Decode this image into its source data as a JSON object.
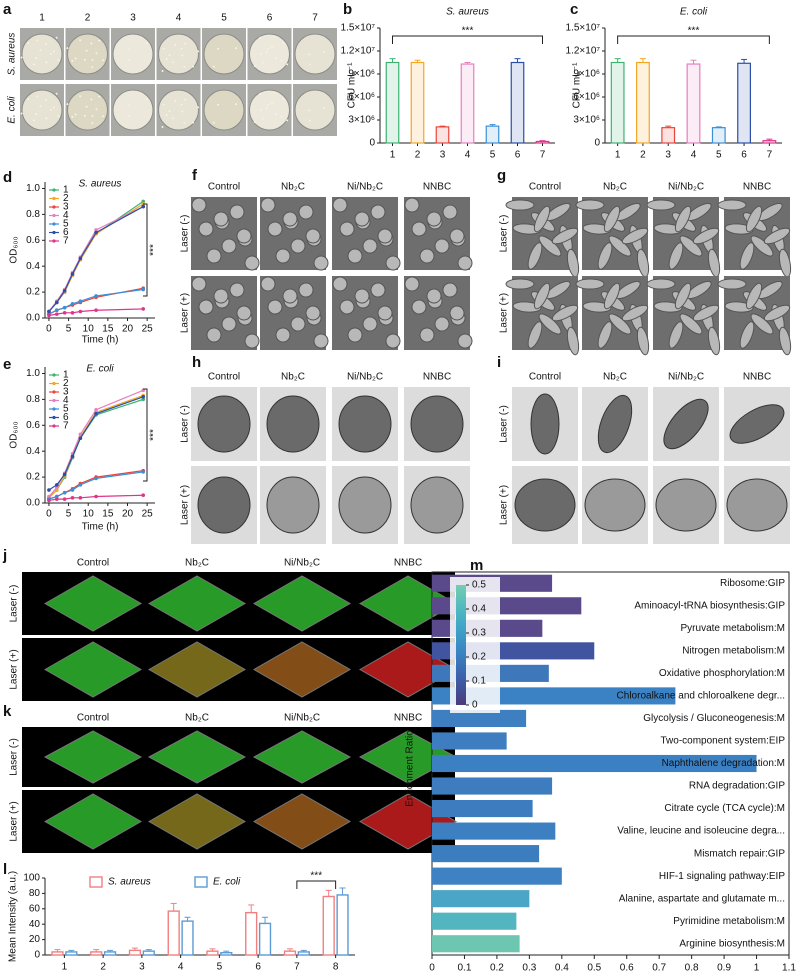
{
  "panels": {
    "a": {
      "letter": "a",
      "columns": [
        "1",
        "2",
        "3",
        "4",
        "5",
        "6",
        "7"
      ],
      "rows": [
        "S. aureus",
        "E. coli"
      ]
    },
    "f": {
      "letter": "f",
      "columns": [
        "Control",
        "Nb₂C",
        "Ni/Nb₂C",
        "NNBC"
      ],
      "rows": [
        "Laser (-)",
        "Laser (+)"
      ]
    },
    "g": {
      "letter": "g",
      "columns": [
        "Control",
        "Nb₂C",
        "Ni/Nb₂C",
        "NNBC"
      ],
      "rows": [
        "Laser (-)",
        "Laser (+)"
      ]
    },
    "h": {
      "letter": "h",
      "columns": [
        "Control",
        "Nb₂C",
        "Ni/Nb₂C",
        "NNBC"
      ],
      "rows": [
        "Laser (-)",
        "Laser (+)"
      ]
    },
    "i": {
      "letter": "i",
      "columns": [
        "Control",
        "Nb₂C",
        "Ni/Nb₂C",
        "NNBC"
      ],
      "rows": [
        "Laser (-)",
        "Laser (+)"
      ]
    },
    "j": {
      "letter": "j",
      "columns": [
        "Control",
        "Nb₂C",
        "Ni/Nb₂C",
        "NNBC"
      ],
      "rows": [
        "Laser (-)",
        "Laser (+)"
      ]
    },
    "k": {
      "letter": "k",
      "columns": [
        "Control",
        "Nb₂C",
        "Ni/Nb₂C",
        "NNBC"
      ],
      "rows": [
        "Laser (-)",
        "Laser (+)"
      ]
    }
  },
  "chart_data": [
    {
      "type": "bar",
      "letter": "b",
      "title": "S. aureus",
      "y_label": "CFU mL⁻¹",
      "categories": [
        "1",
        "2",
        "3",
        "4",
        "5",
        "6",
        "7"
      ],
      "values": [
        10500000,
        10500000,
        2100000,
        10300000,
        2200000,
        10500000,
        200000
      ],
      "errors": [
        500000,
        300000,
        100000,
        200000,
        200000,
        500000,
        100000
      ],
      "colors": [
        "#3cb371",
        "#f5a623",
        "#e8453c",
        "#e77fc0",
        "#3a8fd9",
        "#2b4fa8",
        "#e0338a"
      ],
      "ylim": [
        0,
        15000000
      ],
      "yticks": [
        0,
        {
          "value": 3000000,
          "label": "3×10⁶"
        },
        {
          "value": 6000000,
          "label": "6×10⁶"
        },
        {
          "value": 9000000,
          "label": "9×10⁶"
        },
        {
          "value": 12000000,
          "label": "1.2×10⁷"
        },
        {
          "value": 15000000,
          "label": "1.5×10⁷"
        }
      ],
      "annotation": "***"
    },
    {
      "type": "bar",
      "letter": "c",
      "title": "E. coli",
      "y_label": "CFU mL⁻¹",
      "categories": [
        "1",
        "2",
        "3",
        "4",
        "5",
        "6",
        "7"
      ],
      "values": [
        10500000,
        10500000,
        2000000,
        10300000,
        2000000,
        10400000,
        300000
      ],
      "errors": [
        500000,
        500000,
        200000,
        500000,
        100000,
        500000,
        200000
      ],
      "colors": [
        "#3cb371",
        "#f5a623",
        "#e8453c",
        "#e77fc0",
        "#3a8fd9",
        "#2b4fa8",
        "#e0338a"
      ],
      "ylim": [
        0,
        15000000
      ],
      "yticks": [
        0,
        {
          "value": 3000000,
          "label": "3×10⁶"
        },
        {
          "value": 6000000,
          "label": "6×10⁶"
        },
        {
          "value": 9000000,
          "label": "9×10⁶"
        },
        {
          "value": 12000000,
          "label": "1.2×10⁷"
        },
        {
          "value": 15000000,
          "label": "1.5×10⁷"
        }
      ],
      "annotation": "***"
    },
    {
      "type": "line",
      "letter": "d",
      "title": "S. aureus",
      "x_label": "Time (h)",
      "y_label": "OD₆₀₀",
      "x": [
        0,
        2,
        4,
        6,
        8,
        12,
        24
      ],
      "series": [
        {
          "name": "1",
          "color": "#3cb371",
          "values": [
            0.05,
            0.12,
            0.2,
            0.33,
            0.45,
            0.65,
            0.9
          ]
        },
        {
          "name": "2",
          "color": "#f5a623",
          "values": [
            0.05,
            0.12,
            0.2,
            0.33,
            0.45,
            0.65,
            0.88
          ]
        },
        {
          "name": "3",
          "color": "#e8453c",
          "values": [
            0.03,
            0.06,
            0.08,
            0.1,
            0.12,
            0.16,
            0.23
          ]
        },
        {
          "name": "4",
          "color": "#e77fc0",
          "values": [
            0.05,
            0.13,
            0.22,
            0.35,
            0.47,
            0.68,
            0.86
          ]
        },
        {
          "name": "5",
          "color": "#3a8fd9",
          "values": [
            0.03,
            0.06,
            0.08,
            0.11,
            0.13,
            0.17,
            0.22
          ]
        },
        {
          "name": "6",
          "color": "#2b4fa8",
          "values": [
            0.05,
            0.12,
            0.21,
            0.34,
            0.46,
            0.66,
            0.86
          ]
        },
        {
          "name": "7",
          "color": "#e0338a",
          "values": [
            0.02,
            0.03,
            0.04,
            0.04,
            0.05,
            0.06,
            0.07
          ]
        }
      ],
      "xlim": [
        -1,
        27
      ],
      "xticks": [
        0,
        5,
        10,
        15,
        20,
        25
      ],
      "ylim": [
        0,
        1.05
      ],
      "yticks": [
        {
          "value": 0,
          "label": "0.0"
        },
        {
          "value": 0.2,
          "label": "0.2"
        },
        {
          "value": 0.4,
          "label": "0.4"
        },
        {
          "value": 0.6,
          "label": "0.6"
        },
        {
          "value": 0.8,
          "label": "0.8"
        },
        {
          "value": 1,
          "label": "1.0"
        }
      ],
      "annotation": "***"
    },
    {
      "type": "line",
      "letter": "e",
      "title": "E. coli",
      "x_label": "Time (h)",
      "y_label": "OD₆₀₀",
      "x": [
        0,
        2,
        4,
        6,
        8,
        12,
        24
      ],
      "series": [
        {
          "name": "1",
          "color": "#3cb371",
          "values": [
            0.04,
            0.1,
            0.2,
            0.35,
            0.5,
            0.68,
            0.8
          ]
        },
        {
          "name": "2",
          "color": "#f5a623",
          "values": [
            0.04,
            0.1,
            0.21,
            0.36,
            0.51,
            0.7,
            0.83
          ]
        },
        {
          "name": "3",
          "color": "#e8453c",
          "values": [
            0.03,
            0.05,
            0.08,
            0.11,
            0.15,
            0.2,
            0.25
          ]
        },
        {
          "name": "4",
          "color": "#e77fc0",
          "values": [
            0.05,
            0.12,
            0.23,
            0.38,
            0.53,
            0.72,
            0.87
          ]
        },
        {
          "name": "5",
          "color": "#3a8fd9",
          "values": [
            0.03,
            0.05,
            0.08,
            0.1,
            0.14,
            0.19,
            0.24
          ]
        },
        {
          "name": "6",
          "color": "#2b4fa8",
          "values": [
            0.1,
            0.14,
            0.22,
            0.36,
            0.5,
            0.69,
            0.82
          ]
        },
        {
          "name": "7",
          "color": "#e0338a",
          "values": [
            0.02,
            0.03,
            0.03,
            0.04,
            0.04,
            0.05,
            0.06
          ]
        }
      ],
      "xlim": [
        -1,
        27
      ],
      "xticks": [
        0,
        5,
        10,
        15,
        20,
        25
      ],
      "ylim": [
        0,
        1.05
      ],
      "yticks": [
        {
          "value": 0,
          "label": "0.0"
        },
        {
          "value": 0.2,
          "label": "0.2"
        },
        {
          "value": 0.4,
          "label": "0.4"
        },
        {
          "value": 0.6,
          "label": "0.6"
        },
        {
          "value": 0.8,
          "label": "0.8"
        },
        {
          "value": 1,
          "label": "1.0"
        }
      ],
      "annotation": "***"
    },
    {
      "type": "bar",
      "letter": "l",
      "y_label": "Mean Intensity (a.u.)",
      "categories": [
        "1",
        "2",
        "3",
        "4",
        "5",
        "6",
        "7",
        "8"
      ],
      "series": [
        {
          "name": "S. aureus",
          "color": "#f08080",
          "values": [
            4,
            4,
            6,
            57,
            5,
            55,
            5,
            76
          ],
          "errors": [
            3,
            3,
            3,
            10,
            3,
            10,
            3,
            8
          ]
        },
        {
          "name": "E. coli",
          "color": "#5b9bd5",
          "values": [
            4,
            4,
            5,
            44,
            3,
            41,
            4,
            78
          ],
          "errors": [
            2,
            2,
            2,
            5,
            2,
            8,
            2,
            9
          ]
        }
      ],
      "ylim": [
        0,
        100
      ],
      "yticks": [
        0,
        20,
        40,
        60,
        80,
        100
      ],
      "annotation": "***"
    },
    {
      "type": "barh",
      "letter": "m",
      "axis_label": "Enrichment Ratio",
      "categories": [
        "Ribosome:GIP",
        "Aminoacyl-tRNA biosynthesis:GIP",
        "Pyruvate metabolism:M",
        "Nitrogen metabolism:M",
        "Oxidative phosphorylation:M",
        "Chloroalkane and chloroalkene degr...",
        "Glycolysis / Gluconeogenesis:M",
        "Two-component system:EIP",
        "Naphthalene degradation:M",
        "RNA degradation:GIP",
        "Citrate cycle (TCA cycle):M",
        "Valine, leucine and isoleucine degra...",
        "Mismatch repair:GIP",
        "HIF-1 signaling pathway:EIP",
        "Alanine, aspartate and glutamate m...",
        "Pyrimidine metabolism:M",
        "Arginine biosynthesis:M"
      ],
      "values": [
        0.37,
        0.46,
        0.34,
        0.5,
        0.36,
        0.75,
        0.29,
        0.23,
        1,
        0.37,
        0.31,
        0.38,
        0.33,
        0.4,
        0.3,
        0.26,
        0.27
      ],
      "colors": [
        "#5b4a8b",
        "#5b4a8b",
        "#5b4a8b",
        "#4054a0",
        "#3e78bb",
        "#3b82c4",
        "#3e7fc1",
        "#3d7dc0",
        "#3b80c3",
        "#3d7dbf",
        "#3c7cbf",
        "#3d80c2",
        "#3c7dbf",
        "#3e82c3",
        "#4aa5c6",
        "#52b5c0",
        "#6cc6b0"
      ],
      "xlim": [
        0,
        1.1
      ],
      "xticks": [
        0,
        0.1,
        0.2,
        0.3,
        0.4,
        0.5,
        0.6,
        0.7,
        0.8,
        0.9,
        1,
        1.1
      ],
      "colorbar_lim": [
        0,
        0.5
      ],
      "colorbar_ticks": [
        0,
        0.1,
        0.2,
        0.3,
        0.4,
        0.5
      ],
      "colorbar_colors": [
        "#4b3b7a",
        "#3d5aa6",
        "#3a7dc0",
        "#3c9dc7",
        "#4fb9c0",
        "#74cdb0"
      ]
    }
  ]
}
